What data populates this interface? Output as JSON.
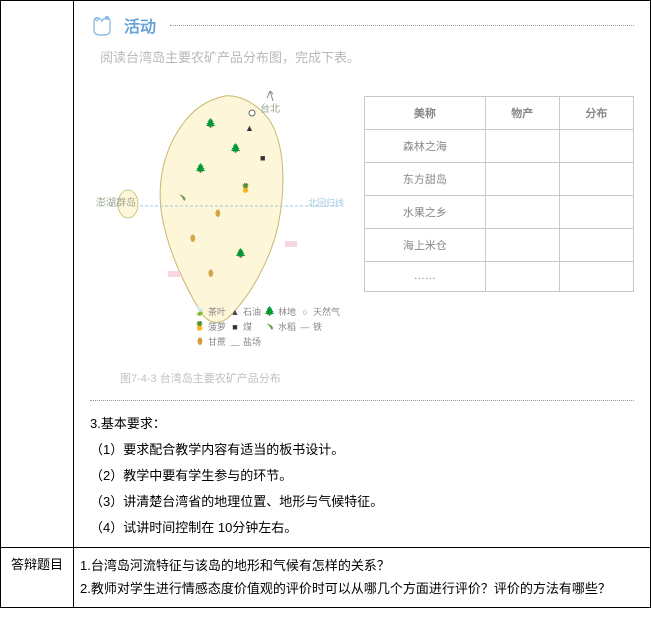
{
  "activity": {
    "title": "活动",
    "instruction": "阅读台湾岛主要农矿产品分布图，完成下表。",
    "caption": "图7-4-3  台湾岛主要农矿产品分布"
  },
  "map": {
    "labels": {
      "taipei": "台北",
      "penghu": "澎湖群岛",
      "tropic": "北回归线"
    },
    "legend": [
      {
        "sym": "🍃",
        "color": "#5a8a3a",
        "label": "茶叶"
      },
      {
        "sym": "▲",
        "color": "#4a4a4a",
        "label": "石油"
      },
      {
        "sym": "🌲",
        "color": "#3a7a3a",
        "label": "林地"
      },
      {
        "sym": "○",
        "color": "#888888",
        "label": "天然气"
      },
      {
        "sym": "🍍",
        "color": "#c9a94a",
        "label": "菠萝"
      },
      {
        "sym": "■",
        "color": "#333333",
        "label": "煤"
      },
      {
        "sym": "﹅",
        "color": "#6aa34a",
        "label": "水稻"
      },
      {
        "sym": "—",
        "color": "#888888",
        "label": "铁"
      },
      {
        "sym": "⬮",
        "color": "#d99a3a",
        "label": "甘蔗"
      },
      {
        "sym": "﹏",
        "color": "#888888",
        "label": "盐场"
      }
    ]
  },
  "mini_table": {
    "headers": [
      "美称",
      "物产",
      "分布"
    ],
    "rows": [
      "森林之海",
      "东方甜岛",
      "水果之乡",
      "海上米仓",
      "……"
    ]
  },
  "requirements": {
    "title": "3.基本要求：",
    "items": [
      "（1）要求配合教学内容有适当的板书设计。",
      "（2）教学中要有学生参与的环节。",
      "（3）讲清楚台湾省的地理位置、地形与气候特征。",
      "（4）试讲时间控制在 10分钟左右。"
    ]
  },
  "defense": {
    "label": "答辩题目",
    "items": [
      "1.台湾岛河流特征与该岛的地形和气候有怎样的关系？",
      "2.教师对学生进行情感态度价值观的评价时可以从哪几个方面进行评价？评价的方法有哪些？"
    ]
  }
}
